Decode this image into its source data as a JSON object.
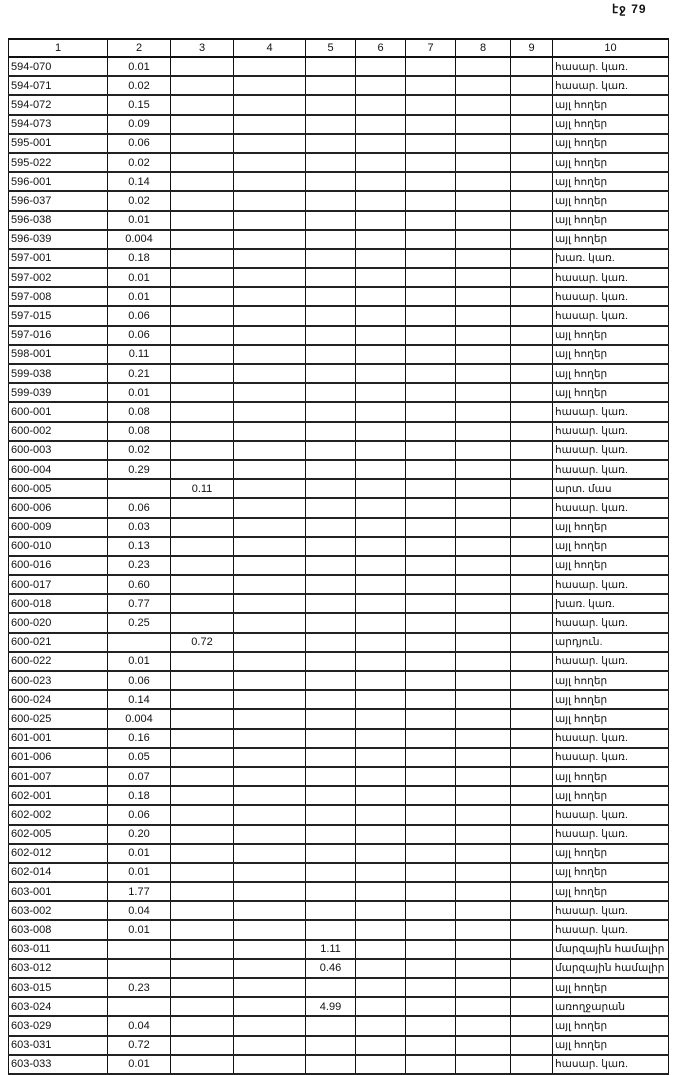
{
  "page_label": "էջ 79",
  "columns": [
    "1",
    "2",
    "3",
    "4",
    "5",
    "6",
    "7",
    "8",
    "9",
    "10"
  ],
  "rows": [
    [
      "594-070",
      "0.01",
      "",
      "",
      "",
      "",
      "",
      "",
      "",
      "հասար. կառ."
    ],
    [
      "594-071",
      "0.02",
      "",
      "",
      "",
      "",
      "",
      "",
      "",
      "հասար. կառ."
    ],
    [
      "594-072",
      "0.15",
      "",
      "",
      "",
      "",
      "",
      "",
      "",
      "այլ հողեր"
    ],
    [
      "594-073",
      "0.09",
      "",
      "",
      "",
      "",
      "",
      "",
      "",
      "այլ հողեր"
    ],
    [
      "595-001",
      "0.06",
      "",
      "",
      "",
      "",
      "",
      "",
      "",
      "այլ հողեր"
    ],
    [
      "595-022",
      "0.02",
      "",
      "",
      "",
      "",
      "",
      "",
      "",
      "այլ հողեր"
    ],
    [
      "596-001",
      "0.14",
      "",
      "",
      "",
      "",
      "",
      "",
      "",
      "այլ հողեր"
    ],
    [
      "596-037",
      "0.02",
      "",
      "",
      "",
      "",
      "",
      "",
      "",
      "այլ հողեր"
    ],
    [
      "596-038",
      "0.01",
      "",
      "",
      "",
      "",
      "",
      "",
      "",
      "այլ հողեր"
    ],
    [
      "596-039",
      "0.004",
      "",
      "",
      "",
      "",
      "",
      "",
      "",
      "այլ հողեր"
    ],
    [
      "597-001",
      "0.18",
      "",
      "",
      "",
      "",
      "",
      "",
      "",
      "խառ. կառ."
    ],
    [
      "597-002",
      "0.01",
      "",
      "",
      "",
      "",
      "",
      "",
      "",
      "հասար. կառ."
    ],
    [
      "597-008",
      "0.01",
      "",
      "",
      "",
      "",
      "",
      "",
      "",
      "հասար. կառ."
    ],
    [
      "597-015",
      "0.06",
      "",
      "",
      "",
      "",
      "",
      "",
      "",
      "հասար. կառ."
    ],
    [
      "597-016",
      "0.06",
      "",
      "",
      "",
      "",
      "",
      "",
      "",
      "այլ հողեր"
    ],
    [
      "598-001",
      "0.11",
      "",
      "",
      "",
      "",
      "",
      "",
      "",
      "այլ հողեր"
    ],
    [
      "599-038",
      "0.21",
      "",
      "",
      "",
      "",
      "",
      "",
      "",
      "այլ հողեր"
    ],
    [
      "599-039",
      "0.01",
      "",
      "",
      "",
      "",
      "",
      "",
      "",
      "այլ հողեր"
    ],
    [
      "600-001",
      "0.08",
      "",
      "",
      "",
      "",
      "",
      "",
      "",
      "հասար. կառ."
    ],
    [
      "600-002",
      "0.08",
      "",
      "",
      "",
      "",
      "",
      "",
      "",
      "հասար. կառ."
    ],
    [
      "600-003",
      "0.02",
      "",
      "",
      "",
      "",
      "",
      "",
      "",
      "հասար. կառ."
    ],
    [
      "600-004",
      "0.29",
      "",
      "",
      "",
      "",
      "",
      "",
      "",
      "հասար. կառ."
    ],
    [
      "600-005",
      "",
      "0.11",
      "",
      "",
      "",
      "",
      "",
      "",
      "արտ. մաս"
    ],
    [
      "600-006",
      "0.06",
      "",
      "",
      "",
      "",
      "",
      "",
      "",
      "հասար. կառ."
    ],
    [
      "600-009",
      "0.03",
      "",
      "",
      "",
      "",
      "",
      "",
      "",
      "այլ հողեր"
    ],
    [
      "600-010",
      "0.13",
      "",
      "",
      "",
      "",
      "",
      "",
      "",
      "այլ հողեր"
    ],
    [
      "600-016",
      "0.23",
      "",
      "",
      "",
      "",
      "",
      "",
      "",
      "այլ հողեր"
    ],
    [
      "600-017",
      "0.60",
      "",
      "",
      "",
      "",
      "",
      "",
      "",
      "հասար. կառ."
    ],
    [
      "600-018",
      "0.77",
      "",
      "",
      "",
      "",
      "",
      "",
      "",
      "խառ. կառ."
    ],
    [
      "600-020",
      "0.25",
      "",
      "",
      "",
      "",
      "",
      "",
      "",
      "հասար. կառ."
    ],
    [
      "600-021",
      "",
      "0.72",
      "",
      "",
      "",
      "",
      "",
      "",
      "արդյուն."
    ],
    [
      "600-022",
      "0.01",
      "",
      "",
      "",
      "",
      "",
      "",
      "",
      "հասար. կառ."
    ],
    [
      "600-023",
      "0.06",
      "",
      "",
      "",
      "",
      "",
      "",
      "",
      "այլ հողեր"
    ],
    [
      "600-024",
      "0.14",
      "",
      "",
      "",
      "",
      "",
      "",
      "",
      "այլ հողեր"
    ],
    [
      "600-025",
      "0.004",
      "",
      "",
      "",
      "",
      "",
      "",
      "",
      "այլ հողեր"
    ],
    [
      "601-001",
      "0.16",
      "",
      "",
      "",
      "",
      "",
      "",
      "",
      "հասար. կառ."
    ],
    [
      "601-006",
      "0.05",
      "",
      "",
      "",
      "",
      "",
      "",
      "",
      "հասար. կառ."
    ],
    [
      "601-007",
      "0.07",
      "",
      "",
      "",
      "",
      "",
      "",
      "",
      "այլ հողեր"
    ],
    [
      "602-001",
      "0.18",
      "",
      "",
      "",
      "",
      "",
      "",
      "",
      "այլ հողեր"
    ],
    [
      "602-002",
      "0.06",
      "",
      "",
      "",
      "",
      "",
      "",
      "",
      "հասար. կառ."
    ],
    [
      "602-005",
      "0.20",
      "",
      "",
      "",
      "",
      "",
      "",
      "",
      "հասար. կառ."
    ],
    [
      "602-012",
      "0.01",
      "",
      "",
      "",
      "",
      "",
      "",
      "",
      "այլ հողեր"
    ],
    [
      "602-014",
      "0.01",
      "",
      "",
      "",
      "",
      "",
      "",
      "",
      "այլ հողեր"
    ],
    [
      "603-001",
      "1.77",
      "",
      "",
      "",
      "",
      "",
      "",
      "",
      "այլ հողեր"
    ],
    [
      "603-002",
      "0.04",
      "",
      "",
      "",
      "",
      "",
      "",
      "",
      "հասար. կառ."
    ],
    [
      "603-008",
      "0.01",
      "",
      "",
      "",
      "",
      "",
      "",
      "",
      "հասար. կառ."
    ],
    [
      "603-011",
      "",
      "",
      "",
      "1.11",
      "",
      "",
      "",
      "",
      "մարզային համալիր"
    ],
    [
      "603-012",
      "",
      "",
      "",
      "0.46",
      "",
      "",
      "",
      "",
      "մարզային համալիր"
    ],
    [
      "603-015",
      "0.23",
      "",
      "",
      "",
      "",
      "",
      "",
      "",
      "այլ հողեր"
    ],
    [
      "603-024",
      "",
      "",
      "",
      "4.99",
      "",
      "",
      "",
      "",
      "առողջարան"
    ],
    [
      "603-029",
      "0.04",
      "",
      "",
      "",
      "",
      "",
      "",
      "",
      "այլ հողեր"
    ],
    [
      "603-031",
      "0.72",
      "",
      "",
      "",
      "",
      "",
      "",
      "",
      "այլ հողեր"
    ],
    [
      "603-033",
      "0.01",
      "",
      "",
      "",
      "",
      "",
      "",
      "",
      "հասար. կառ."
    ]
  ]
}
